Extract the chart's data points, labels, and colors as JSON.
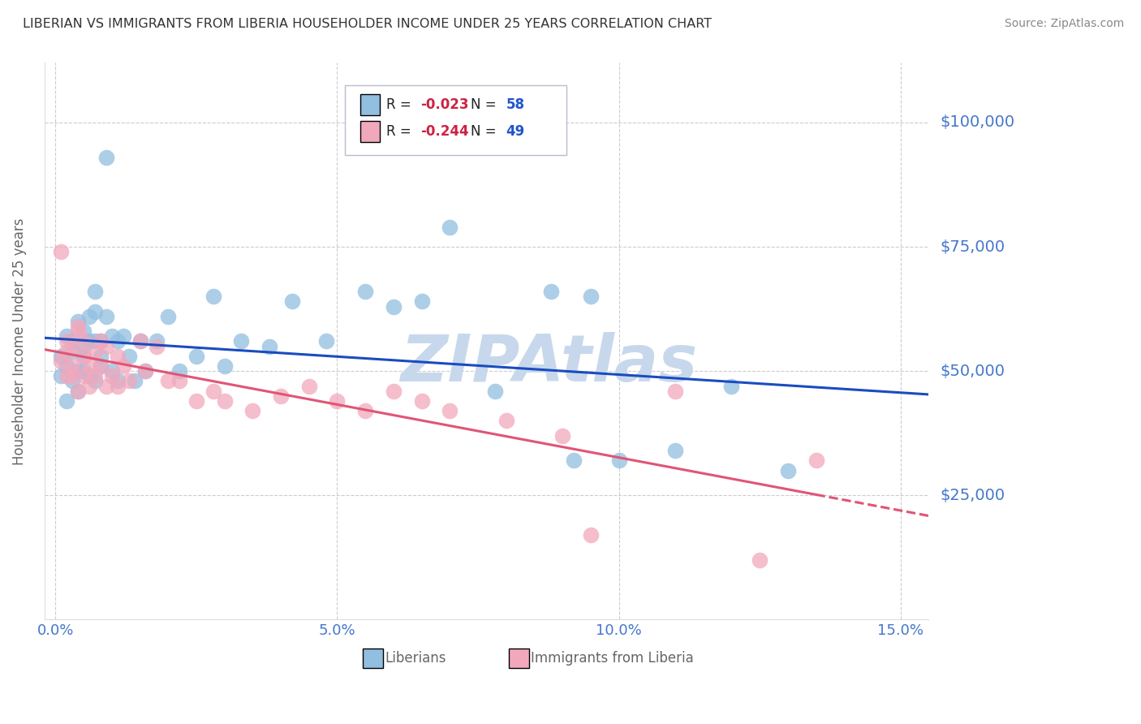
{
  "title": "LIBERIAN VS IMMIGRANTS FROM LIBERIA HOUSEHOLDER INCOME UNDER 25 YEARS CORRELATION CHART",
  "source": "Source: ZipAtlas.com",
  "ylabel": "Householder Income Under 25 years",
  "xlabel_ticks": [
    "0.0%",
    "5.0%",
    "10.0%",
    "15.0%"
  ],
  "xlabel_tick_vals": [
    0.0,
    0.05,
    0.1,
    0.15
  ],
  "xlim": [
    -0.002,
    0.155
  ],
  "ylim": [
    0,
    112000
  ],
  "ytick_vals": [
    25000,
    50000,
    75000,
    100000
  ],
  "ytick_labels": [
    "$25,000",
    "$50,000",
    "$75,000",
    "$100,000"
  ],
  "legend1_r": "-0.023",
  "legend1_n": "58",
  "legend2_r": "-0.244",
  "legend2_n": "49",
  "color_blue": "#92BEE0",
  "color_pink": "#F2A8BC",
  "line_blue": "#1A4CC0",
  "line_pink": "#E05575",
  "background": "#FFFFFF",
  "grid_color": "#CCCCCC",
  "watermark": "ZIPAtlas",
  "watermark_color": "#C8D8EC",
  "axis_tick_color": "#4477CC",
  "ylabel_color": "#666666",
  "title_color": "#333333",
  "legend_label_color": "#222222",
  "legend_r_color": "#CC2244",
  "legend_n_color": "#2255CC",
  "source_color": "#888888",
  "legend_bottom_color": "#666666",
  "blue_points_x": [
    0.001,
    0.001,
    0.002,
    0.002,
    0.002,
    0.003,
    0.003,
    0.003,
    0.004,
    0.004,
    0.004,
    0.005,
    0.005,
    0.005,
    0.005,
    0.006,
    0.006,
    0.006,
    0.007,
    0.007,
    0.007,
    0.007,
    0.008,
    0.008,
    0.008,
    0.009,
    0.009,
    0.01,
    0.01,
    0.011,
    0.011,
    0.012,
    0.013,
    0.014,
    0.015,
    0.016,
    0.018,
    0.02,
    0.022,
    0.025,
    0.028,
    0.03,
    0.033,
    0.038,
    0.042,
    0.048,
    0.055,
    0.06,
    0.065,
    0.07,
    0.078,
    0.088,
    0.092,
    0.095,
    0.1,
    0.11,
    0.12,
    0.13
  ],
  "blue_points_y": [
    53000,
    49000,
    57000,
    44000,
    51000,
    54000,
    48000,
    56000,
    60000,
    50000,
    46000,
    53000,
    58000,
    50000,
    55000,
    61000,
    49000,
    56000,
    66000,
    56000,
    48000,
    62000,
    53000,
    51000,
    56000,
    61000,
    93000,
    57000,
    50000,
    56000,
    48000,
    57000,
    53000,
    48000,
    56000,
    50000,
    56000,
    61000,
    50000,
    53000,
    65000,
    51000,
    56000,
    55000,
    64000,
    56000,
    66000,
    63000,
    64000,
    79000,
    46000,
    66000,
    32000,
    65000,
    32000,
    34000,
    47000,
    30000
  ],
  "pink_points_x": [
    0.001,
    0.001,
    0.002,
    0.002,
    0.002,
    0.003,
    0.003,
    0.003,
    0.004,
    0.004,
    0.004,
    0.005,
    0.005,
    0.005,
    0.006,
    0.006,
    0.007,
    0.007,
    0.008,
    0.008,
    0.009,
    0.009,
    0.01,
    0.011,
    0.011,
    0.012,
    0.013,
    0.015,
    0.016,
    0.018,
    0.02,
    0.022,
    0.025,
    0.028,
    0.03,
    0.035,
    0.04,
    0.045,
    0.05,
    0.055,
    0.06,
    0.065,
    0.07,
    0.08,
    0.09,
    0.095,
    0.11,
    0.125,
    0.135
  ],
  "pink_points_y": [
    52000,
    74000,
    56000,
    49000,
    54000,
    49000,
    55000,
    51000,
    58000,
    46000,
    59000,
    49000,
    56000,
    53000,
    47000,
    51000,
    54000,
    49000,
    56000,
    51000,
    47000,
    55000,
    49000,
    53000,
    47000,
    51000,
    48000,
    56000,
    50000,
    55000,
    48000,
    48000,
    44000,
    46000,
    44000,
    42000,
    45000,
    47000,
    44000,
    42000,
    46000,
    44000,
    42000,
    40000,
    37000,
    17000,
    46000,
    12000,
    32000
  ]
}
